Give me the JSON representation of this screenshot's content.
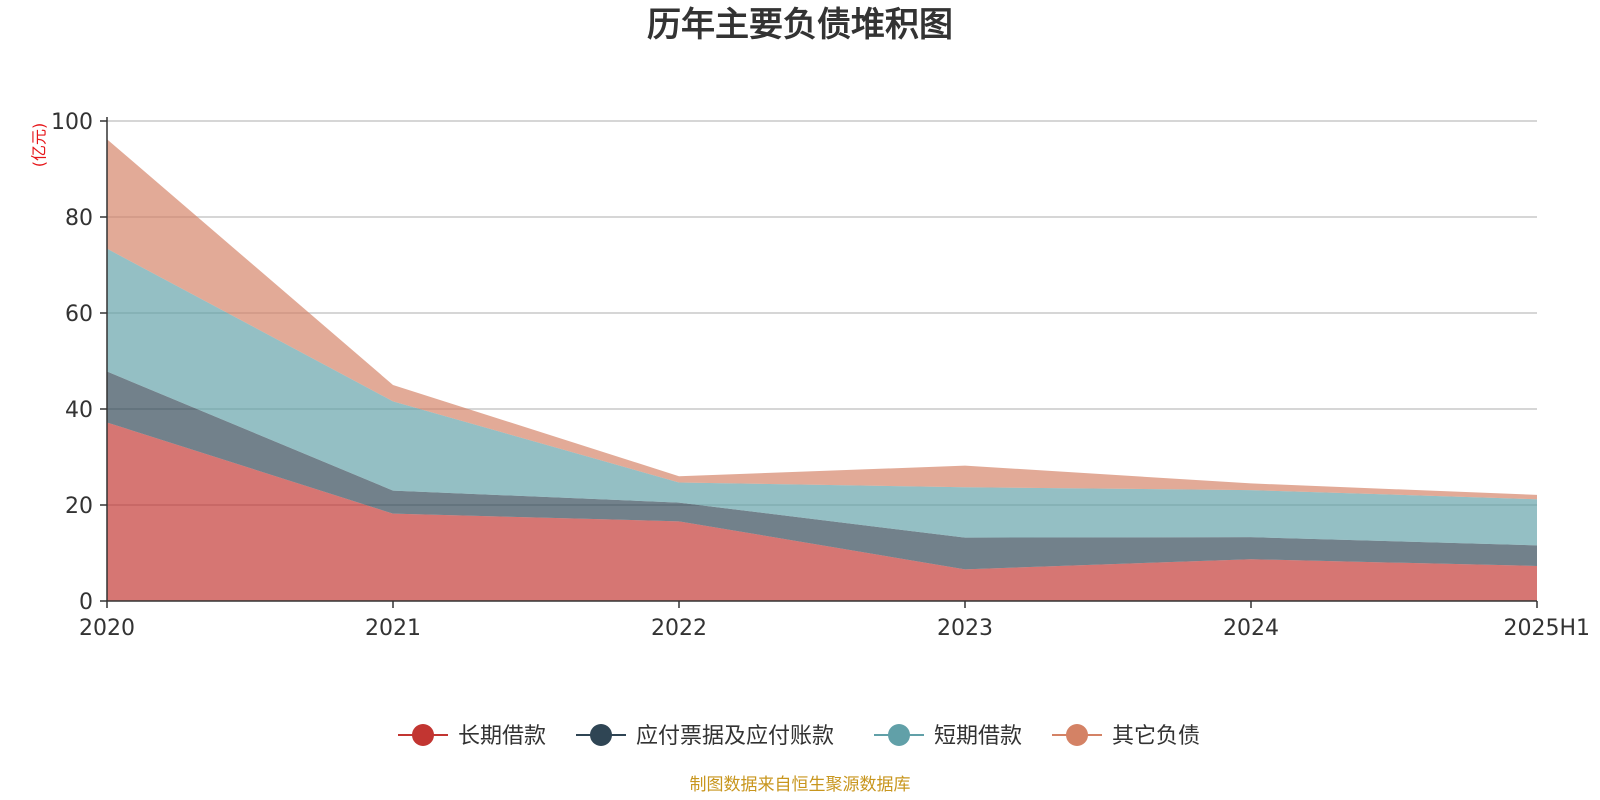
{
  "chart_data": {
    "type": "area",
    "stacked": true,
    "title": "历年主要负债堆积图",
    "unit_label": "(亿元)",
    "x": [
      "2020",
      "2021",
      "2022",
      "2023",
      "2024",
      "2025H1"
    ],
    "ylim": [
      0,
      100
    ],
    "yticks": [
      0,
      20,
      40,
      60,
      80,
      100
    ],
    "grid": true,
    "legend_position": "bottom",
    "series": [
      {
        "name": "长期借款",
        "color": "#c23531",
        "values": [
          37.2,
          18.2,
          16.6,
          6.6,
          8.7,
          7.3
        ]
      },
      {
        "name": "应付票据及应付账款",
        "color": "#2f4554",
        "values": [
          10.6,
          4.8,
          3.9,
          6.6,
          4.6,
          4.3
        ]
      },
      {
        "name": "短期借款",
        "color": "#61a0a8",
        "values": [
          25.6,
          18.6,
          4.2,
          10.5,
          9.8,
          9.6
        ]
      },
      {
        "name": "其它负债",
        "color": "#d48265",
        "values": [
          22.8,
          3.4,
          1.3,
          4.5,
          1.4,
          0.9
        ]
      }
    ]
  },
  "source_note": "制图数据来自恒生聚源数据库"
}
